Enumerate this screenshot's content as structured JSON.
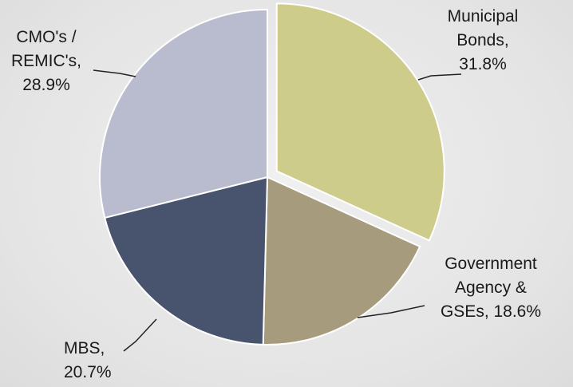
{
  "chart_data": {
    "type": "pie",
    "value_labels": [
      "Municipal Bonds, 31.8%",
      "Government Agency & GSEs, 18.6%",
      "MBS, 20.7%",
      "CMO's / REMIC's, 28.9%"
    ],
    "values": [
      31.8,
      18.6,
      20.7,
      28.9
    ],
    "colors": [
      "#cdcc8b",
      "#a69b7d",
      "#48536e",
      "#b9bccf"
    ]
  }
}
